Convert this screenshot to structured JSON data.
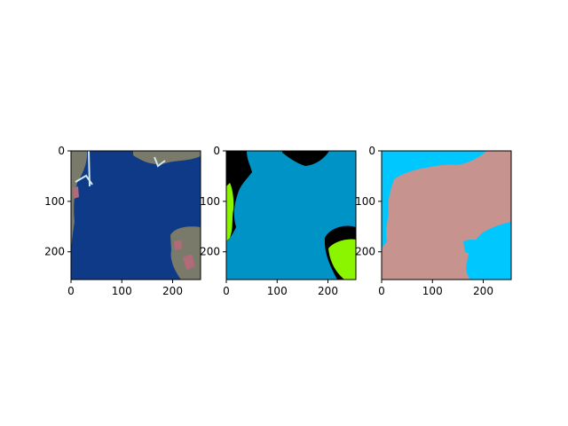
{
  "chart_data": [
    {
      "type": "heatmap",
      "subject": "satellite-image",
      "xlim": [
        0,
        255
      ],
      "ylim": [
        255,
        0
      ],
      "xticks": [
        "0",
        "100",
        "200"
      ],
      "yticks": [
        "0",
        "100",
        "200"
      ],
      "colors": {
        "water": "#0e3a87",
        "land": "#7a7a6a",
        "urban": "#b06a78",
        "road": "#cfe8f0"
      }
    },
    {
      "type": "heatmap",
      "subject": "label-mask",
      "xlim": [
        0,
        255
      ],
      "ylim": [
        255,
        0
      ],
      "xticks": [
        "0",
        "100",
        "200"
      ],
      "yticks": [
        "0",
        "100",
        "200"
      ],
      "colors": {
        "background": "#0093c6",
        "void": "#000000",
        "vegetation": "#8bf500"
      }
    },
    {
      "type": "heatmap",
      "subject": "prediction-mask",
      "xlim": [
        0,
        255
      ],
      "ylim": [
        255,
        0
      ],
      "xticks": [
        "0",
        "100",
        "200"
      ],
      "yticks": [
        "0",
        "100",
        "200"
      ],
      "colors": {
        "water": "#c7938f",
        "land": "#00c8ff"
      }
    }
  ]
}
